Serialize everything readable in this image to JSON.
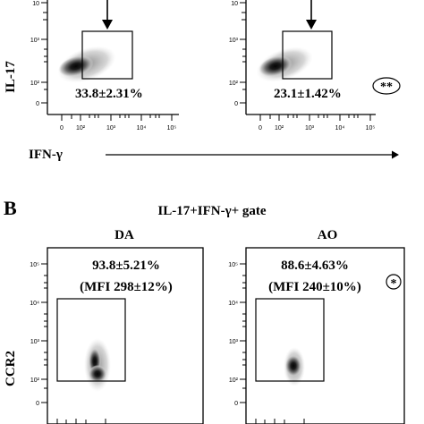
{
  "top": {
    "y_axis_label": "IL-17",
    "x_axis_label": "IFN-γ",
    "y_ticks": [
      "10",
      "10³",
      "10²",
      "0"
    ],
    "x_ticks": [
      "0",
      "10²",
      "10³",
      "10⁴",
      "10⁵"
    ],
    "left_panel": {
      "stat": "33.8±2.31%"
    },
    "right_panel": {
      "stat": "23.1±1.42%",
      "significance": "**"
    }
  },
  "bottom": {
    "panel_letter": "B",
    "gate_title": "IL-17+IFN-γ+ gate",
    "y_axis_label": "CCR2",
    "y_ticks": [
      "10⁵",
      "10⁴",
      "10³",
      "10²",
      "0"
    ],
    "left_panel": {
      "title": "DA",
      "stat": "93.8±5.21%",
      "mfi": "(MFI 298±12%)"
    },
    "right_panel": {
      "title": "AO",
      "stat": "88.6±4.63%",
      "mfi": "(MFI 240±10%)",
      "significance": "*"
    }
  },
  "colors": {
    "ink": "#000000",
    "density_dark": "#111111",
    "density_light": "#bdbdbd"
  }
}
